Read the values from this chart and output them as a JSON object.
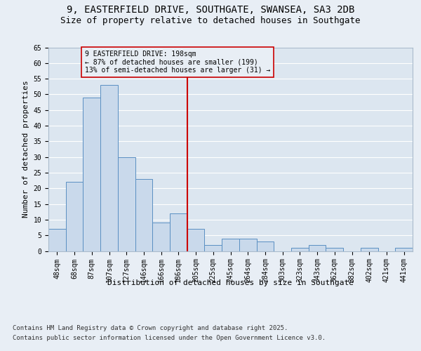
{
  "title_line1": "9, EASTERFIELD DRIVE, SOUTHGATE, SWANSEA, SA3 2DB",
  "title_line2": "Size of property relative to detached houses in Southgate",
  "xlabel": "Distribution of detached houses by size in Southgate",
  "ylabel": "Number of detached properties",
  "bar_labels": [
    "48sqm",
    "68sqm",
    "87sqm",
    "107sqm",
    "127sqm",
    "146sqm",
    "166sqm",
    "186sqm",
    "205sqm",
    "225sqm",
    "245sqm",
    "264sqm",
    "284sqm",
    "303sqm",
    "323sqm",
    "343sqm",
    "362sqm",
    "382sqm",
    "402sqm",
    "421sqm",
    "441sqm"
  ],
  "bar_values": [
    7,
    22,
    49,
    53,
    30,
    23,
    9,
    12,
    7,
    2,
    4,
    4,
    3,
    0,
    1,
    2,
    1,
    0,
    1,
    0,
    1
  ],
  "bar_color": "#c9d9eb",
  "bar_edge_color": "#5a8fc2",
  "bg_color": "#e8eef5",
  "plot_bg_color": "#dce6f0",
  "grid_color": "#ffffff",
  "vline_color": "#cc0000",
  "annotation_box_text": "9 EASTERFIELD DRIVE: 198sqm\n← 87% of detached houses are smaller (199)\n13% of semi-detached houses are larger (31) →",
  "annotation_box_color": "#cc0000",
  "ylim": [
    0,
    65
  ],
  "yticks": [
    0,
    5,
    10,
    15,
    20,
    25,
    30,
    35,
    40,
    45,
    50,
    55,
    60,
    65
  ],
  "footnote1": "Contains HM Land Registry data © Crown copyright and database right 2025.",
  "footnote2": "Contains public sector information licensed under the Open Government Licence v3.0.",
  "title_fontsize": 10,
  "subtitle_fontsize": 9,
  "axis_label_fontsize": 8,
  "tick_fontsize": 7,
  "annotation_fontsize": 7,
  "footnote_fontsize": 6.5
}
